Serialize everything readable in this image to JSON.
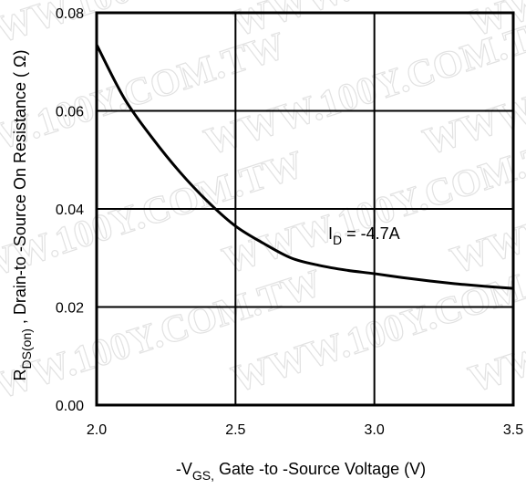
{
  "chart_data": {
    "type": "line",
    "title": "",
    "xlabel": {
      "prefix": "-V",
      "subscript": "GS,",
      "text": " Gate -to -Source Voltage  (V)"
    },
    "ylabel": {
      "prefix": "R",
      "subscript": "DS(on)",
      "text": " ,  Drain-to -Source On Resistance ( Ω)"
    },
    "xlim": [
      2.0,
      3.5
    ],
    "ylim": [
      0.0,
      0.08
    ],
    "x_ticks": [
      "2.0",
      "2.5",
      "3.0",
      "3.5"
    ],
    "y_ticks": [
      "0.00",
      "0.02",
      "0.04",
      "0.06",
      "0.08"
    ],
    "grid": true,
    "series": [
      {
        "x": [
          2.0,
          2.1,
          2.2,
          2.3,
          2.4,
          2.5,
          2.6,
          2.7,
          2.8,
          2.9,
          3.0,
          3.1,
          3.2,
          3.3,
          3.4,
          3.5
        ],
        "y": [
          0.0735,
          0.0625,
          0.0545,
          0.0475,
          0.0415,
          0.0365,
          0.033,
          0.03,
          0.0285,
          0.0275,
          0.0268,
          0.026,
          0.0253,
          0.0247,
          0.0242,
          0.0238
        ]
      }
    ],
    "annotation": {
      "prefix": "I",
      "subscript": "D",
      "text": " = -4.7A"
    }
  },
  "watermark": "WWW.100Y.COM.TW"
}
